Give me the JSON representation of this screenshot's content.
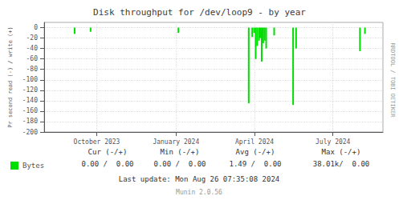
{
  "chart_data": {
    "type": "bar",
    "title": "Disk throughput for /dev/loop9 - by year",
    "ylabel": "Pr second read (-) / write (+)",
    "x": [
      1693900000,
      1695500000,
      1704300000,
      1711350000,
      1711700000,
      1711900000,
      1712050000,
      1712200000,
      1712380000,
      1712500000,
      1712650000,
      1712800000,
      1712950000,
      1713100000,
      1713900000,
      1715800000,
      1716100000,
      1722500000,
      1723000000
    ],
    "series": [
      {
        "name": "Bytes",
        "color": "#00dd00",
        "values": [
          -12,
          -8,
          -10,
          -145,
          -18,
          -10,
          -60,
          -35,
          -25,
          -20,
          -65,
          -30,
          -25,
          -40,
          -15,
          -148,
          -40,
          -45,
          -12
        ]
      }
    ],
    "xlim": [
      1690848000,
      1724803200
    ],
    "xticks": [
      {
        "value": 1696118400,
        "label": "October 2023"
      },
      {
        "value": 1704067200,
        "label": "January 2024"
      },
      {
        "value": 1711929600,
        "label": "April 2024"
      },
      {
        "value": 1719792000,
        "label": "July 2024"
      }
    ],
    "ylim": [
      -200,
      10
    ],
    "yticks": [
      0,
      -20,
      -40,
      -60,
      -80,
      -100,
      -120,
      -140,
      -160,
      -180,
      -200
    ],
    "grid": true,
    "legend": "lower left",
    "annotations": [
      "RRDTOOL / TOBI OETIKER",
      "Cur (-/+)",
      "Min (-/+)",
      "Avg (-/+)",
      "Max (-/+)",
      "0.00 /  0.00",
      "0.00 /  0.00",
      "1.49 /  0.00",
      "38.01k/  0.00",
      "Last update: Mon Aug 26 07:35:08 2024",
      "Munin 2.0.56"
    ]
  }
}
